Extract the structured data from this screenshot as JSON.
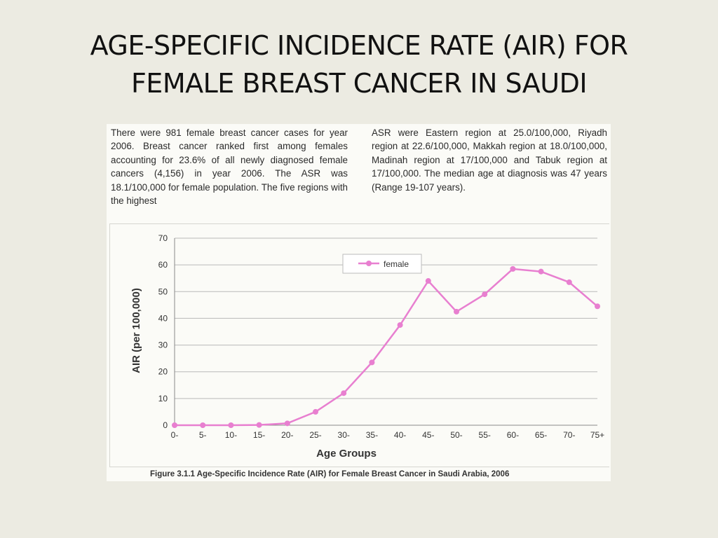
{
  "slide": {
    "title_line1": "AGE-SPECIFIC INCIDENCE RATE (AIR) FOR",
    "title_line2": "FEMALE BREAST CANCER IN SAUDI"
  },
  "report": {
    "left_text": "There were 981 female breast cancer cases for year 2006. Breast cancer ranked first among females accounting for 23.6% of all newly diagnosed female cancers (4,156) in year 2006. The ASR was 18.1/100,000 for female population. The five regions with the highest",
    "right_text": "ASR were Eastern region at 25.0/100,000, Riyadh region at 22.6/100,000, Makkah region at 18.0/100,000, Madinah region at 17/100,000 and Tabuk region at 17/100,000. The median age at diagnosis was 47 years (Range 19-107 years).",
    "caption": "Figure 3.1.1 Age-Specific Incidence Rate (AIR) for Female Breast Cancer in Saudi Arabia, 2006"
  },
  "chart_data": {
    "type": "line",
    "title": "",
    "xlabel": "Age Groups",
    "ylabel": "AIR (per 100,000)",
    "categories": [
      "0-",
      "5-",
      "10-",
      "15-",
      "20-",
      "25-",
      "30-",
      "35-",
      "40-",
      "45-",
      "50-",
      "55-",
      "60-",
      "65-",
      "70-",
      "75+"
    ],
    "series": [
      {
        "name": "female",
        "color": "#e87fd0",
        "values": [
          0,
          0,
          0,
          0.1,
          0.7,
          5,
          12,
          23.5,
          37.5,
          54,
          42.5,
          49,
          58.5,
          57.5,
          53.5,
          44.5
        ]
      }
    ],
    "ylim": [
      0,
      70
    ],
    "yticks": [
      0,
      10,
      20,
      30,
      40,
      50,
      60,
      70
    ],
    "grid": true,
    "legend": "top-center"
  }
}
